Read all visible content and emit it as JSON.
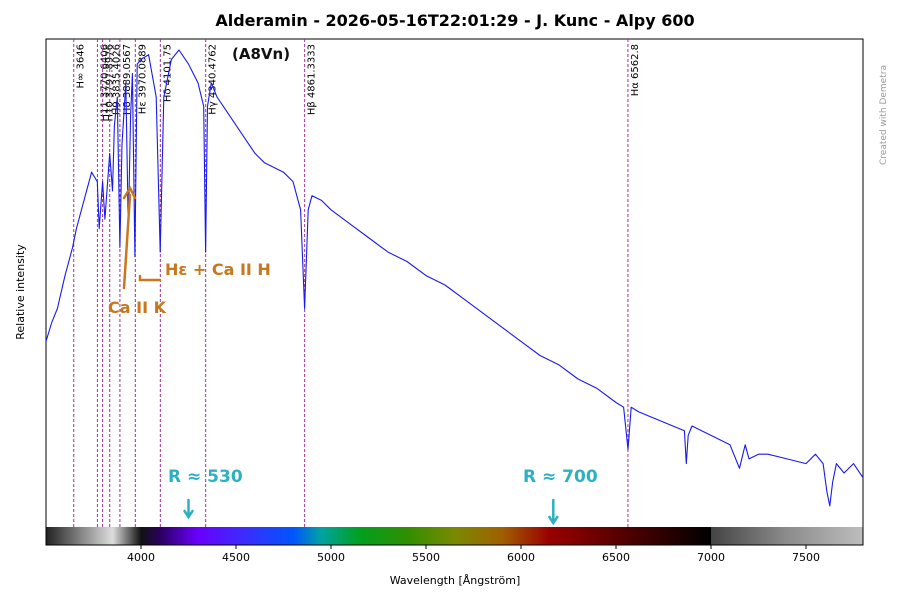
{
  "chart_data": {
    "type": "line",
    "title": "Alderamin - 2026-05-16T22:01:29 - J. Kunc - Alpy 600",
    "xlabel": "Wavelength [Ångström]",
    "ylabel": "Relative intensity",
    "xlim": [
      3500,
      7800
    ],
    "ylim": [
      0,
      1
    ],
    "x_ticks": [
      "4000",
      "4500",
      "5000",
      "5500",
      "6000",
      "6500",
      "7000",
      "7500"
    ],
    "grid": false,
    "series_color": "#1a1aee",
    "marker_color": "#a0309a",
    "spectrum": {
      "x": [
        3500,
        3530,
        3560,
        3600,
        3640,
        3660,
        3700,
        3740,
        3770,
        3780,
        3798,
        3810,
        3835,
        3850,
        3860,
        3875,
        3889,
        3900,
        3920,
        3933,
        3945,
        3955,
        3968,
        3980,
        4000,
        4040,
        4080,
        4101,
        4120,
        4160,
        4200,
        4250,
        4300,
        4330,
        4340,
        4350,
        4370,
        4400,
        4450,
        4500,
        4550,
        4600,
        4650,
        4700,
        4750,
        4800,
        4840,
        4861,
        4880,
        4900,
        4950,
        5000,
        5100,
        5200,
        5300,
        5400,
        5500,
        5600,
        5700,
        5800,
        5900,
        6000,
        6100,
        6200,
        6300,
        6400,
        6500,
        6540,
        6563,
        6580,
        6620,
        6680,
        6860,
        6870,
        6880,
        6900,
        7000,
        7100,
        7150,
        7180,
        7200,
        7250,
        7300,
        7400,
        7500,
        7550,
        7590,
        7610,
        7625,
        7640,
        7660,
        7700,
        7750,
        7800
      ],
      "y": [
        0.38,
        0.42,
        0.45,
        0.52,
        0.58,
        0.62,
        0.68,
        0.74,
        0.72,
        0.62,
        0.72,
        0.64,
        0.78,
        0.7,
        0.84,
        0.9,
        0.58,
        0.8,
        0.93,
        0.62,
        0.86,
        0.95,
        0.56,
        0.97,
        0.98,
        0.99,
        0.9,
        0.57,
        0.9,
        0.98,
        1.0,
        0.97,
        0.93,
        0.88,
        0.57,
        0.88,
        0.93,
        0.9,
        0.87,
        0.84,
        0.81,
        0.78,
        0.76,
        0.75,
        0.74,
        0.72,
        0.66,
        0.45,
        0.66,
        0.69,
        0.68,
        0.66,
        0.63,
        0.6,
        0.57,
        0.55,
        0.52,
        0.5,
        0.47,
        0.44,
        0.41,
        0.38,
        0.35,
        0.33,
        0.3,
        0.28,
        0.25,
        0.24,
        0.15,
        0.24,
        0.23,
        0.22,
        0.19,
        0.12,
        0.18,
        0.2,
        0.18,
        0.16,
        0.11,
        0.16,
        0.13,
        0.14,
        0.14,
        0.13,
        0.12,
        0.14,
        0.12,
        0.06,
        0.03,
        0.08,
        0.12,
        0.1,
        0.12,
        0.09
      ]
    },
    "line_markers": [
      {
        "label": "H∞ 3646",
        "x": 3646
      },
      {
        "label": "H11 3770.6406",
        "x": 3770.64
      },
      {
        "label": "H10 3797.8976",
        "x": 3797.9
      },
      {
        "label": "H9 3835.4026",
        "x": 3835.4
      },
      {
        "label": "H8 3889.0567",
        "x": 3889.06
      },
      {
        "label": "Hε 3970.0889",
        "x": 3970.09
      },
      {
        "label": "Hδ 4101.75",
        "x": 4101.75
      },
      {
        "label": "Hγ 4340.4762",
        "x": 4340.48
      },
      {
        "label": "Hβ 4861.3333",
        "x": 4861.33
      },
      {
        "label": "Hα 6562.8",
        "x": 6562.8
      }
    ],
    "annotations": {
      "spectral_type": "(A8Vn)",
      "h_epsilon_ca": "Hε + Ca II H",
      "ca_k": "Ca II K",
      "resolution_blue": "R ≈ 530",
      "resolution_red": "R ≈ 700",
      "resolution_blue_at_x": 4250,
      "resolution_red_at_x": 6170
    },
    "colorbar": {
      "from_x": 3500,
      "to_x": 7800,
      "stops": [
        {
          "x": 3500,
          "color": "#222222"
        },
        {
          "x": 3850,
          "color": "#dddddd"
        },
        {
          "x": 4000,
          "color": "#121212"
        },
        {
          "x": 4100,
          "color": "#2a0060"
        },
        {
          "x": 4300,
          "color": "#6a00ff"
        },
        {
          "x": 4550,
          "color": "#3a2dff"
        },
        {
          "x": 4800,
          "color": "#0055ff"
        },
        {
          "x": 4950,
          "color": "#00a3a0"
        },
        {
          "x": 5150,
          "color": "#00a020"
        },
        {
          "x": 5400,
          "color": "#2f8f00"
        },
        {
          "x": 5650,
          "color": "#7a8a00"
        },
        {
          "x": 5900,
          "color": "#a06000"
        },
        {
          "x": 6150,
          "color": "#9a0000"
        },
        {
          "x": 6500,
          "color": "#5a0000"
        },
        {
          "x": 6999,
          "color": "#000000"
        },
        {
          "x": 7000,
          "color": "#444444"
        },
        {
          "x": 7400,
          "color": "#8c8c8c"
        },
        {
          "x": 7800,
          "color": "#bdbdbd"
        }
      ]
    }
  },
  "watermark": "Created with Demetra"
}
